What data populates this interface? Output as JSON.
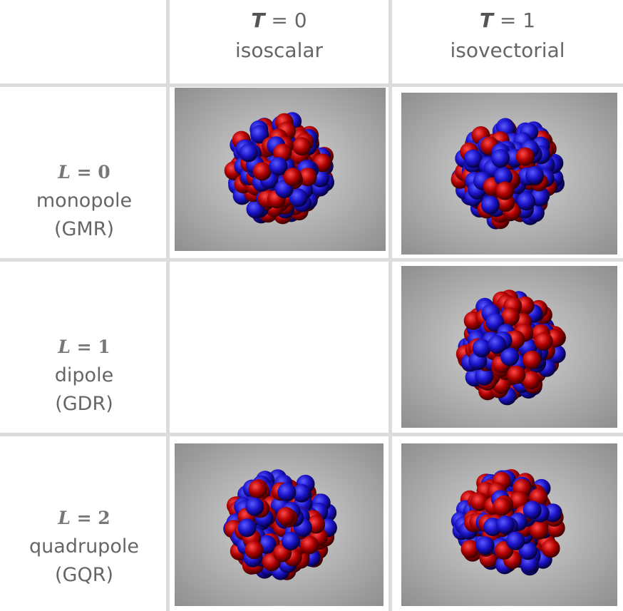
{
  "columns": [
    {
      "symbol": "T",
      "equals": "= 0",
      "name": "isoscalar"
    },
    {
      "symbol": "T",
      "equals": "= 1",
      "name": "isovectorial"
    }
  ],
  "rows": [
    {
      "symbol": "L",
      "equals": "= 0",
      "name": "monopole",
      "abbreviation": "(GMR)"
    },
    {
      "symbol": "L",
      "equals": "= 1",
      "name": "dipole",
      "abbreviation": "(GDR)"
    },
    {
      "symbol": "L",
      "equals": "= 2",
      "name": "quadrupole",
      "abbreviation": "(GQR)"
    }
  ]
}
